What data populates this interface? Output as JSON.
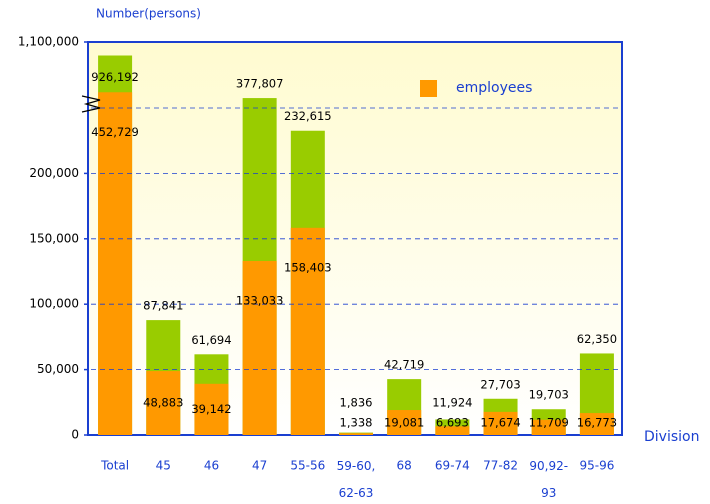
{
  "chart_data": {
    "type": "bar",
    "y_axis_label": "Number(persons)",
    "x_axis_label": "Division",
    "categories": [
      "Total",
      "45",
      "46",
      "47",
      "55-56",
      "59-60,\n62-63",
      "68",
      "69-74",
      "77-82",
      "90,92-\n93",
      "95-96"
    ],
    "series": [
      {
        "color": "#99cc00",
        "values": [
          926192,
          87841,
          61694,
          377807,
          232615,
          1836,
          42719,
          11924,
          27703,
          19703,
          62350
        ],
        "value_labels": [
          "926,192",
          "87,841",
          "61,694",
          "377,807",
          "232,615",
          "1,836",
          "42,719",
          "11,924",
          "27,703",
          "19,703",
          "62,350"
        ]
      },
      {
        "name": "employees",
        "color": "#ff9900",
        "values": [
          452729,
          48883,
          39142,
          133033,
          158403,
          1338,
          19081,
          6693,
          17674,
          11709,
          16773
        ],
        "value_labels": [
          "452,729",
          "48,883",
          "39,142",
          "133,033",
          "158,403",
          "1,338",
          "19,081",
          "6,693",
          "17,674",
          "11,709",
          "16,773"
        ]
      }
    ],
    "ylim": [
      0,
      1100000
    ],
    "yticks": [
      0,
      {
        "value": 50000,
        "label": "50,000"
      },
      {
        "value": 100000,
        "label": "100,000"
      },
      {
        "value": 150000,
        "label": "150,000"
      },
      {
        "value": 200000,
        "label": "200,000"
      },
      {
        "value": 1100000,
        "label": "1,100,000"
      }
    ],
    "axis_break": true,
    "grid": true,
    "legend": "upper right"
  }
}
